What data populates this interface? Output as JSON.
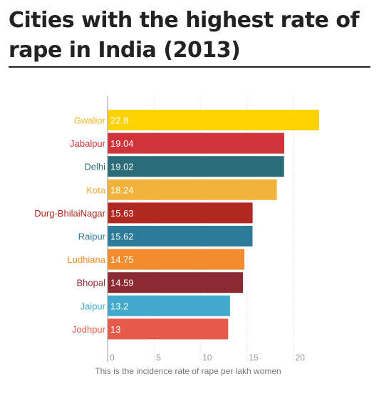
{
  "title": "Cities with the highest rate of rape in India (2013)",
  "chart_data": {
    "type": "bar",
    "orientation": "horizontal",
    "title": "Cities with the highest rate of rape in India (2013)",
    "xlabel": "This is the incidence rate of rape per lakh women",
    "ylabel": "",
    "xlim": [
      0,
      22.8
    ],
    "xticks": [
      "0",
      "5",
      "10",
      "15",
      "20"
    ],
    "grid": "vertical-dotted",
    "categories": [
      "Gwalior",
      "Jabalpur",
      "Delhi",
      "Kota",
      "Durg-BhilaiNagar",
      "Raipur",
      "Ludhiana",
      "Bhopal",
      "Jaipur",
      "Jodhpur"
    ],
    "values": [
      22.8,
      19.04,
      19.02,
      18.24,
      15.63,
      15.62,
      14.75,
      14.59,
      13.2,
      13
    ],
    "value_labels": [
      "22.8",
      "19.04",
      "19.02",
      "18.24",
      "15.63",
      "15.62",
      "14.75",
      "14.59",
      "13.2",
      "13"
    ],
    "colors": [
      "#ffd200",
      "#d0333a",
      "#2b6c79",
      "#f2b33d",
      "#b0281f",
      "#2c7b9a",
      "#f28c2e",
      "#8c2a32",
      "#42a8cc",
      "#e55a4a"
    ],
    "label_colors": [
      "#f2b92f",
      "#d0333a",
      "#2b6c79",
      "#f2a93d",
      "#b0281f",
      "#2c7b9a",
      "#f28c2e",
      "#8c2a32",
      "#42a8cc",
      "#e55a4a"
    ]
  }
}
